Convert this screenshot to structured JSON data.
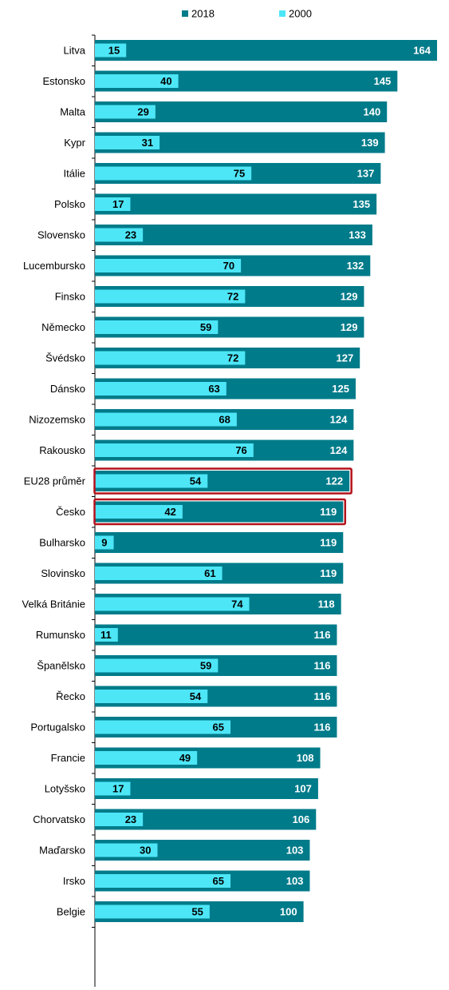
{
  "chart_data": {
    "type": "bar",
    "orientation": "horizontal",
    "categories": [
      "Litva",
      "Estonsko",
      "Malta",
      "Kypr",
      "Itálie",
      "Polsko",
      "Slovensko",
      "Lucembursko",
      "Finsko",
      "Německo",
      "Švédsko",
      "Dánsko",
      "Nizozemsko",
      "Rakousko",
      "EU28 průměr",
      "Česko",
      "Bulharsko",
      "Slovinsko",
      "Velká Británie",
      "Rumunsko",
      "Španělsko",
      "Řecko",
      "Portugalsko",
      "Francie",
      "Lotyšsko",
      "Chorvatsko",
      "Maďarsko",
      "Irsko",
      "Belgie"
    ],
    "series": [
      {
        "name": "2018",
        "color": "#007B8A",
        "values": [
          164,
          145,
          140,
          139,
          137,
          135,
          133,
          132,
          129,
          129,
          127,
          125,
          124,
          124,
          122,
          119,
          119,
          119,
          118,
          116,
          116,
          116,
          116,
          108,
          107,
          106,
          103,
          103,
          100
        ]
      },
      {
        "name": "2000",
        "color": "#4DE6F7",
        "values": [
          15,
          40,
          29,
          31,
          75,
          17,
          23,
          70,
          72,
          59,
          72,
          63,
          68,
          76,
          54,
          42,
          9,
          61,
          74,
          11,
          59,
          54,
          65,
          49,
          17,
          23,
          30,
          65,
          55
        ]
      }
    ],
    "highlighted": [
      "EU28 průměr",
      "Česko"
    ],
    "highlight_color": "#B3121B",
    "legend_position": "top",
    "xlim": [
      0,
      168
    ]
  }
}
